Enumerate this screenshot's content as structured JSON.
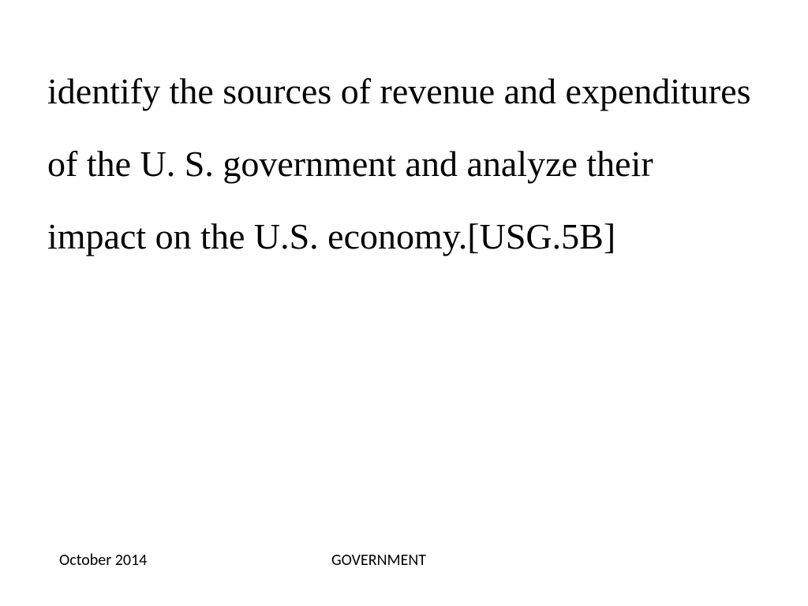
{
  "slide": {
    "body_text": "identify the sources of revenue and expenditures of the U. S. government and analyze their impact on the U.S. economy.[USG.5B]",
    "body_font_family": "Comic Sans MS",
    "body_font_size_pt": 35,
    "body_color": "#000000",
    "background_color": "#ffffff"
  },
  "footer": {
    "left_text": "October 2014",
    "center_text": "GOVERNMENT",
    "font_family": "Calibri",
    "font_size_pt": 15,
    "color": "#000000"
  }
}
